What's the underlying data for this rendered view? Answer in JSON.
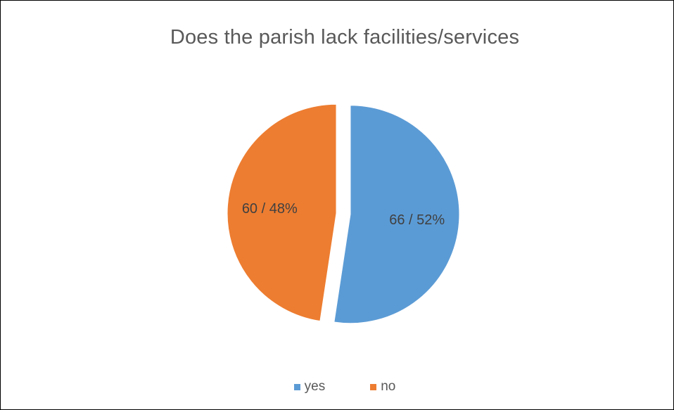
{
  "chart_data": {
    "type": "pie",
    "title": "Does the parish lack facilities/services",
    "categories": [
      "yes",
      "no"
    ],
    "values": [
      66,
      60
    ],
    "percentages": [
      52,
      48
    ],
    "data_labels": [
      "66 / 52%",
      "60 / 48%"
    ],
    "colors": [
      "#5B9BD5",
      "#ED7D31"
    ],
    "exploded": true,
    "legend_position": "bottom"
  }
}
